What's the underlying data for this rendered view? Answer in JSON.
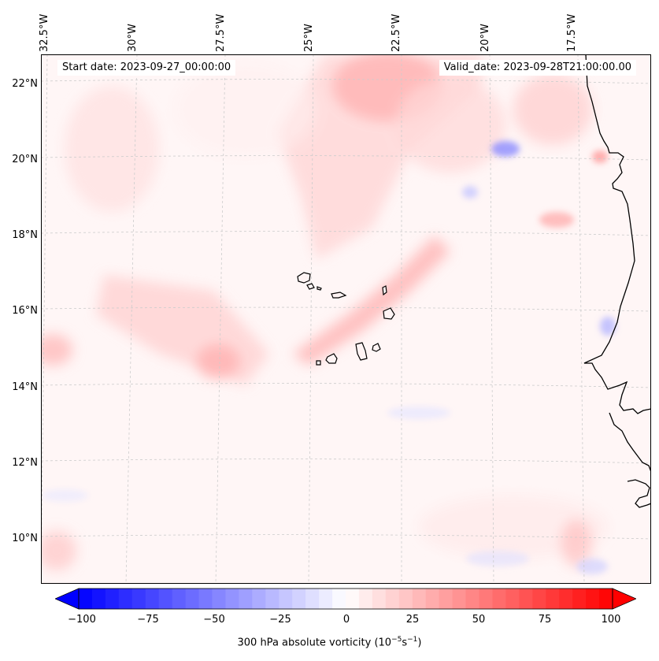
{
  "header": {
    "start_date": "Start date: 2023-09-27_00:00:00",
    "valid_date": "Valid_date: 2023-09-28T21:00:00.00"
  },
  "axes": {
    "lon_labels": [
      "32.5°W",
      "30°W",
      "27.5°W",
      "25°W",
      "22.5°W",
      "20°W",
      "17.5°W"
    ],
    "lat_labels": [
      "22°N",
      "20°N",
      "18°N",
      "16°N",
      "14°N",
      "12°N",
      "10°N"
    ]
  },
  "colorbar": {
    "ticks": [
      "−100",
      "−75",
      "−50",
      "−25",
      "0",
      "25",
      "50",
      "75",
      "100"
    ],
    "label": "300 hPa absolute vorticity (10",
    "label_exp1": "−5",
    "label_mid": "s",
    "label_exp2": "−1",
    "label_end": ")",
    "range": [
      -100,
      100
    ],
    "colors": {
      "neg": "#0000ff",
      "zero": "#ffffff",
      "pos": "#ff0000"
    }
  },
  "map": {
    "field": "300 hPa absolute vorticity",
    "coastline_color": "#000000",
    "gridline_color": "#cccccc"
  }
}
